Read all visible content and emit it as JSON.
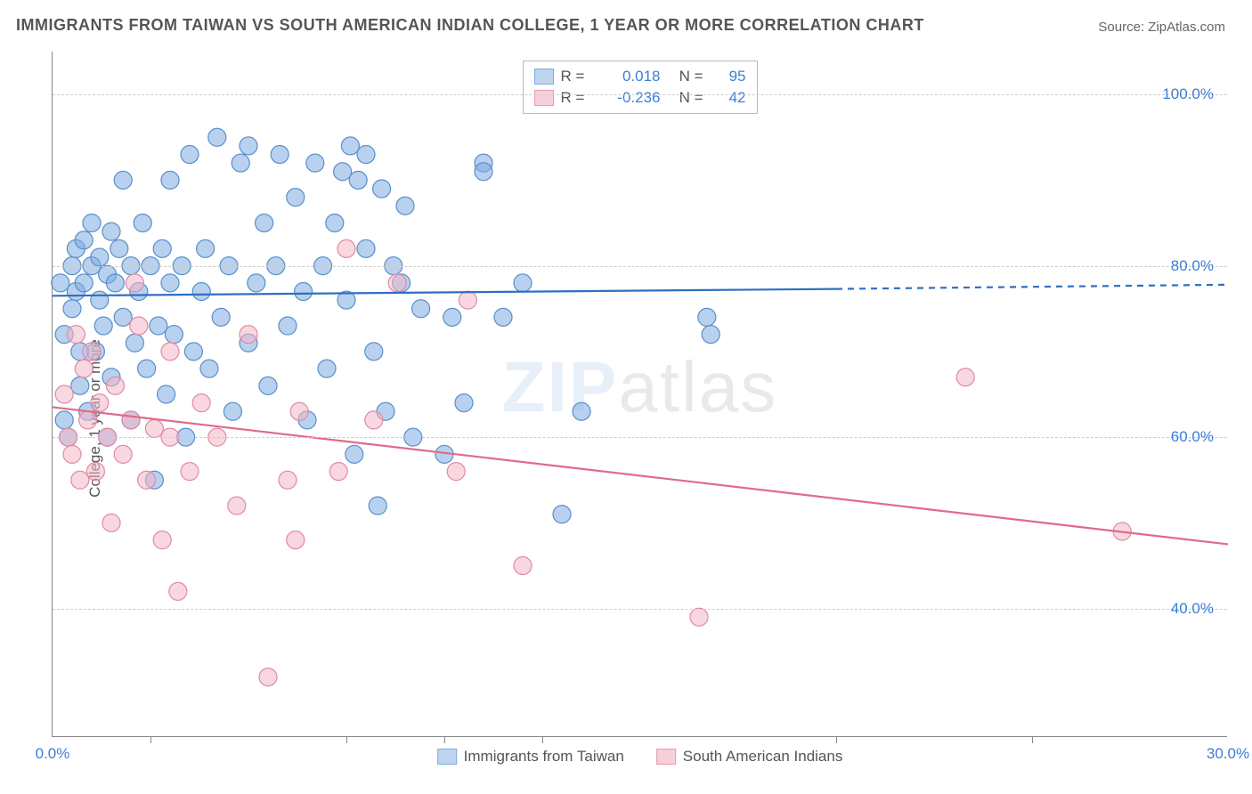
{
  "title": "IMMIGRANTS FROM TAIWAN VS SOUTH AMERICAN INDIAN COLLEGE, 1 YEAR OR MORE CORRELATION CHART",
  "source_label": "Source: ",
  "source_name": "ZipAtlas.com",
  "ylabel": "College, 1 year or more",
  "watermark_a": "ZIP",
  "watermark_b": "atlas",
  "chart": {
    "type": "scatter-with-regression",
    "background_color": "#ffffff",
    "grid_color": "#cccccc",
    "axis_color": "#888888",
    "xlim": [
      0,
      30
    ],
    "ylim": [
      25,
      105
    ],
    "xtick_labels": [
      "0.0%",
      "30.0%"
    ],
    "xtick_positions_pct": [
      0,
      100
    ],
    "minor_xtick_positions_pct": [
      8.3,
      25,
      33.3,
      41.7,
      66.7,
      83.3
    ],
    "ytick_labels": [
      "40.0%",
      "60.0%",
      "80.0%",
      "100.0%"
    ],
    "ytick_positions_val": [
      40,
      60,
      80,
      100
    ],
    "marker_radius": 10,
    "marker_opacity": 0.55,
    "line_width": 2.2,
    "title_fontsize": 18,
    "label_fontsize": 17,
    "series": [
      {
        "name": "Immigrants from Taiwan",
        "color_fill": "#7eace2",
        "color_stroke": "#5a8fc9",
        "line_color": "#2f6fc0",
        "R": "0.018",
        "N": "95",
        "trend": {
          "x1": 0,
          "y1": 76.5,
          "x2": 20,
          "y2": 77.3,
          "dash_after_x": 20,
          "x3": 30,
          "y3": 77.8
        },
        "points": [
          [
            0.2,
            78
          ],
          [
            0.3,
            72
          ],
          [
            0.3,
            62
          ],
          [
            0.4,
            60
          ],
          [
            0.5,
            75
          ],
          [
            0.5,
            80
          ],
          [
            0.6,
            82
          ],
          [
            0.6,
            77
          ],
          [
            0.7,
            66
          ],
          [
            0.7,
            70
          ],
          [
            0.8,
            83
          ],
          [
            0.8,
            78
          ],
          [
            0.9,
            63
          ],
          [
            1.0,
            80
          ],
          [
            1.0,
            85
          ],
          [
            1.1,
            70
          ],
          [
            1.2,
            81
          ],
          [
            1.2,
            76
          ],
          [
            1.3,
            73
          ],
          [
            1.4,
            79
          ],
          [
            1.4,
            60
          ],
          [
            1.5,
            84
          ],
          [
            1.5,
            67
          ],
          [
            1.6,
            78
          ],
          [
            1.7,
            82
          ],
          [
            1.8,
            74
          ],
          [
            1.8,
            90
          ],
          [
            2.0,
            80
          ],
          [
            2.0,
            62
          ],
          [
            2.1,
            71
          ],
          [
            2.2,
            77
          ],
          [
            2.3,
            85
          ],
          [
            2.4,
            68
          ],
          [
            2.5,
            80
          ],
          [
            2.6,
            55
          ],
          [
            2.7,
            73
          ],
          [
            2.8,
            82
          ],
          [
            2.9,
            65
          ],
          [
            3.0,
            78
          ],
          [
            3.0,
            90
          ],
          [
            3.1,
            72
          ],
          [
            3.3,
            80
          ],
          [
            3.4,
            60
          ],
          [
            3.5,
            93
          ],
          [
            3.6,
            70
          ],
          [
            3.8,
            77
          ],
          [
            3.9,
            82
          ],
          [
            4.0,
            68
          ],
          [
            4.2,
            95
          ],
          [
            4.3,
            74
          ],
          [
            4.5,
            80
          ],
          [
            4.6,
            63
          ],
          [
            4.8,
            92
          ],
          [
            5.0,
            71
          ],
          [
            5.0,
            94
          ],
          [
            5.2,
            78
          ],
          [
            5.4,
            85
          ],
          [
            5.5,
            66
          ],
          [
            5.7,
            80
          ],
          [
            5.8,
            93
          ],
          [
            6.0,
            73
          ],
          [
            6.2,
            88
          ],
          [
            6.4,
            77
          ],
          [
            6.5,
            62
          ],
          [
            6.7,
            92
          ],
          [
            6.9,
            80
          ],
          [
            7.0,
            68
          ],
          [
            7.2,
            85
          ],
          [
            7.4,
            91
          ],
          [
            7.5,
            76
          ],
          [
            7.7,
            58
          ],
          [
            7.8,
            90
          ],
          [
            7.6,
            94
          ],
          [
            8.0,
            93
          ],
          [
            8.0,
            82
          ],
          [
            8.2,
            70
          ],
          [
            8.4,
            89
          ],
          [
            8.5,
            63
          ],
          [
            8.7,
            80
          ],
          [
            8.9,
            78
          ],
          [
            9.0,
            87
          ],
          [
            9.2,
            60
          ],
          [
            9.4,
            75
          ],
          [
            8.3,
            52
          ],
          [
            10.0,
            58
          ],
          [
            10.2,
            74
          ],
          [
            10.5,
            64
          ],
          [
            11.0,
            92
          ],
          [
            11.0,
            91
          ],
          [
            11.5,
            74
          ],
          [
            12.0,
            78
          ],
          [
            13.0,
            51
          ],
          [
            13.5,
            63
          ],
          [
            16.7,
            74
          ],
          [
            16.8,
            72
          ]
        ]
      },
      {
        "name": "South American Indians",
        "color_fill": "#f4b6c6",
        "color_stroke": "#e08aa3",
        "line_color": "#e06a8a",
        "R": "-0.236",
        "N": "42",
        "trend": {
          "x1": 0,
          "y1": 63.5,
          "x2": 30,
          "y2": 47.5
        },
        "points": [
          [
            0.3,
            65
          ],
          [
            0.4,
            60
          ],
          [
            0.5,
            58
          ],
          [
            0.6,
            72
          ],
          [
            0.7,
            55
          ],
          [
            0.8,
            68
          ],
          [
            0.9,
            62
          ],
          [
            1.0,
            70
          ],
          [
            1.1,
            56
          ],
          [
            1.2,
            64
          ],
          [
            1.4,
            60
          ],
          [
            1.5,
            50
          ],
          [
            1.6,
            66
          ],
          [
            1.8,
            58
          ],
          [
            2.0,
            62
          ],
          [
            2.1,
            78
          ],
          [
            2.2,
            73
          ],
          [
            2.4,
            55
          ],
          [
            2.6,
            61
          ],
          [
            2.8,
            48
          ],
          [
            3.0,
            70
          ],
          [
            3.0,
            60
          ],
          [
            3.2,
            42
          ],
          [
            3.5,
            56
          ],
          [
            3.8,
            64
          ],
          [
            4.7,
            52
          ],
          [
            4.2,
            60
          ],
          [
            5.5,
            32
          ],
          [
            6.0,
            55
          ],
          [
            6.2,
            48
          ],
          [
            6.3,
            63
          ],
          [
            7.5,
            82
          ],
          [
            7.3,
            56
          ],
          [
            8.2,
            62
          ],
          [
            8.8,
            78
          ],
          [
            10.3,
            56
          ],
          [
            10.6,
            76
          ],
          [
            12.0,
            45
          ],
          [
            16.5,
            39
          ],
          [
            23.3,
            67
          ],
          [
            27.3,
            49
          ],
          [
            5.0,
            72
          ]
        ]
      }
    ]
  }
}
